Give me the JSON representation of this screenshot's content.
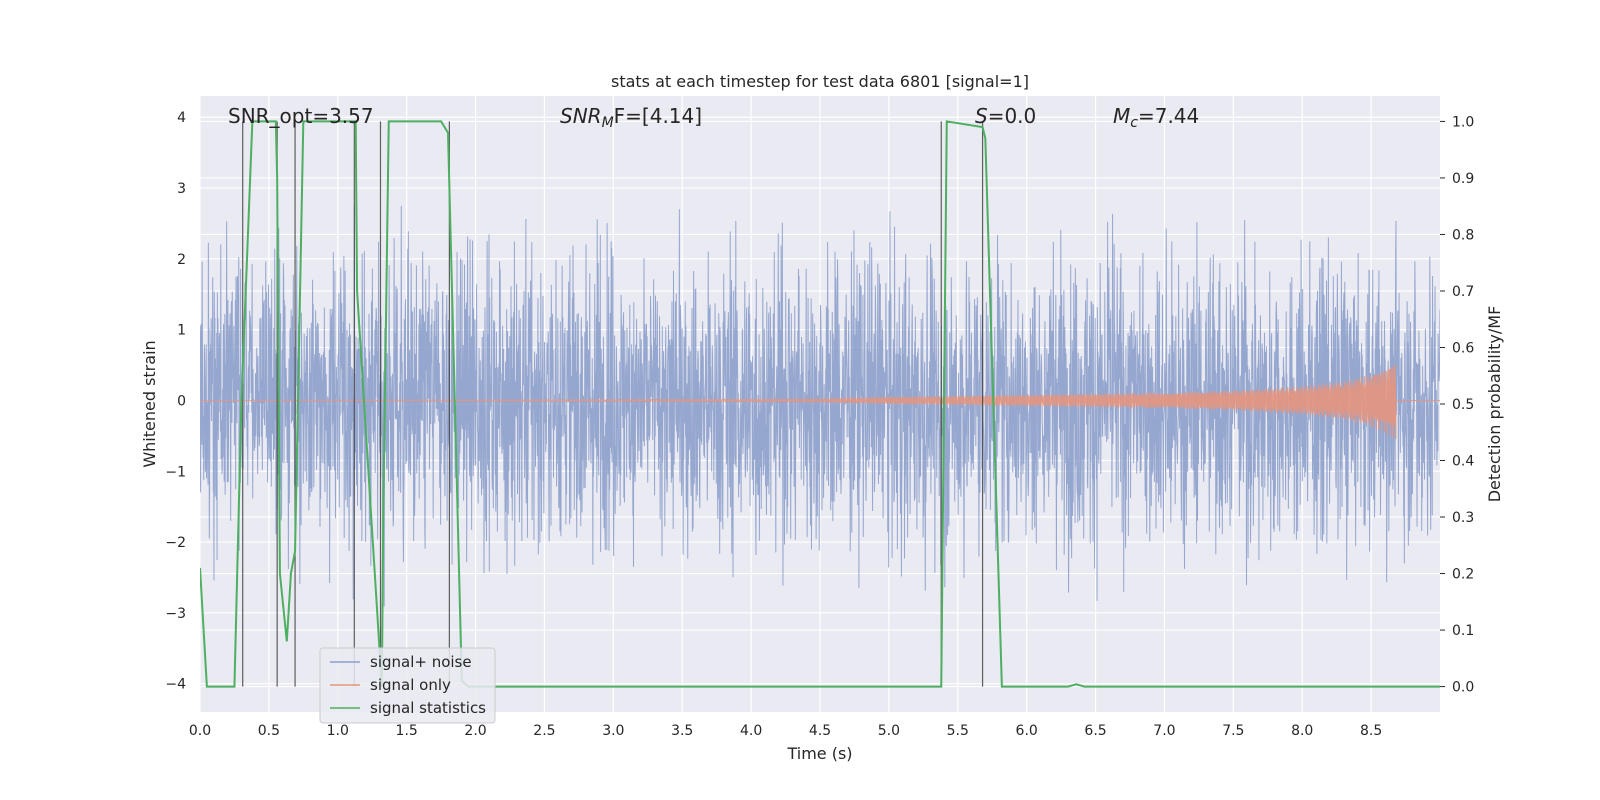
{
  "chart_data": {
    "type": "line",
    "title": "stats at each timestep for test data 6801 [signal=1]",
    "xlabel": "Time (s)",
    "ylabel": "Whitened strain",
    "y2label": "Detection probability/MF",
    "xlim": [
      0.0,
      9.0
    ],
    "ylim": [
      -4.4,
      4.3
    ],
    "y2lim": [
      -0.045,
      1.045
    ],
    "xticks": [
      "0.0",
      "0.5",
      "1.0",
      "1.5",
      "2.0",
      "2.5",
      "3.0",
      "3.5",
      "4.0",
      "4.5",
      "5.0",
      "5.5",
      "6.0",
      "6.5",
      "7.0",
      "7.5",
      "8.0",
      "8.5"
    ],
    "yticks": [
      "4",
      "3",
      "2",
      "1",
      "0",
      "−1",
      "−2",
      "−3",
      "−4"
    ],
    "y2ticks": [
      "1.0",
      "0.9",
      "0.8",
      "0.7",
      "0.6",
      "0.5",
      "0.4",
      "0.3",
      "0.2",
      "0.1",
      "0.0"
    ],
    "annotations": {
      "snr_opt": "SNR_opt=3.57",
      "snr_mf_main": "SNR",
      "snr_mf_sub": "M",
      "snr_mf_rest": "F=[4.14]",
      "s_label": "S",
      "s_value": "=0.0",
      "mc_main": "M",
      "mc_sub": "c",
      "mc_value": "=7.44"
    },
    "legend_position": "lower-left",
    "series": [
      {
        "name": "signal+ noise",
        "color": "#8da0cb",
        "description": "whitened strain, approx. Gaussian noise, sigma ~ 1.0, spikes up to about +3.7 / -4.0"
      },
      {
        "name": "signal only",
        "color": "#e5957d",
        "chirp_envelope": {
          "t": [
            0.0,
            4.5,
            5.0,
            6.0,
            7.0,
            7.5,
            8.0,
            8.3,
            8.5,
            8.6,
            8.65,
            8.68
          ],
          "amplitude": [
            0.0,
            0.02,
            0.05,
            0.08,
            0.11,
            0.14,
            0.2,
            0.27,
            0.37,
            0.45,
            0.52,
            0.55
          ]
        }
      },
      {
        "name": "signal statistics",
        "color": "#4daf60",
        "axis": "right",
        "t": [
          0.0,
          0.05,
          0.25,
          0.28,
          0.3,
          0.38,
          0.55,
          0.56,
          0.58,
          0.63,
          0.66,
          0.69,
          0.75,
          0.78,
          1.13,
          1.14,
          1.32,
          1.33,
          1.37,
          1.4,
          1.75,
          1.8,
          1.85,
          1.9,
          1.95,
          5.38,
          5.42,
          5.68,
          5.7,
          5.82,
          5.9,
          6.3,
          6.36,
          6.42,
          6.5,
          9.0
        ],
        "values": [
          0.21,
          0.0,
          0.0,
          0.3,
          0.5,
          1.0,
          1.0,
          0.9,
          0.2,
          0.08,
          0.2,
          0.24,
          1.0,
          1.0,
          1.0,
          0.7,
          0.0,
          0.3,
          1.0,
          1.0,
          1.0,
          0.98,
          0.5,
          0.01,
          0.0,
          0.0,
          1.0,
          0.99,
          0.97,
          0.0,
          0.0,
          0.0,
          0.004,
          0.0,
          0.0,
          0.0
        ]
      }
    ],
    "vertical_markers_s": [
      0.31,
      0.56,
      0.69,
      1.12,
      1.31,
      1.81,
      5.38,
      5.68
    ]
  },
  "legend": {
    "items": [
      {
        "label": "signal+ noise",
        "color": "#8da0cb"
      },
      {
        "label": "signal only",
        "color": "#e5957d"
      },
      {
        "label": "signal statistics",
        "color": "#4daf60"
      }
    ]
  }
}
